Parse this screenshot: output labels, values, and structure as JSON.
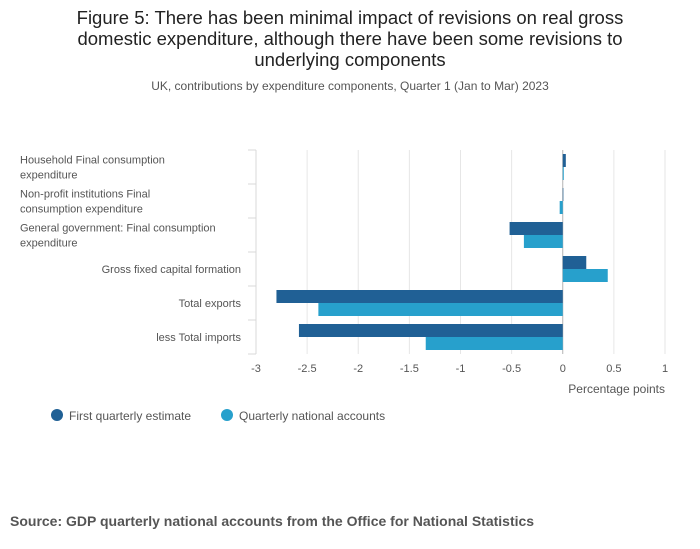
{
  "title": "Figure 5: There has been minimal impact of revisions on real gross domestic expenditure, although there have been some revisions to underlying components",
  "subtitle": "UK, contributions by expenditure components, Quarter 1 (Jan to Mar) 2023",
  "source": "Source: GDP quarterly national accounts from the Office for National Statistics",
  "chart_data": {
    "type": "bar",
    "orientation": "horizontal",
    "categories": [
      "Household Final consumption expenditure",
      "Non-profit institutions Final consumption expenditure",
      "General government: Final consumption expenditure",
      "Gross fixed capital formation",
      "Total exports",
      "less Total imports"
    ],
    "series": [
      {
        "name": "First quarterly estimate",
        "color": "#206095",
        "values": [
          0.03,
          0.0,
          -0.52,
          0.23,
          -2.8,
          -2.58
        ]
      },
      {
        "name": "Quarterly national accounts",
        "color": "#27a0cc",
        "values": [
          0.01,
          -0.03,
          -0.38,
          0.44,
          -2.39,
          -1.34
        ]
      }
    ],
    "xlabel": "Percentage points",
    "ylabel": "",
    "xlim": [
      -3,
      1
    ],
    "xticks": [
      -3,
      -2.5,
      -2,
      -1.5,
      -1,
      -0.5,
      0,
      0.5,
      1
    ],
    "grid": true,
    "legend_position": "bottom-left"
  }
}
